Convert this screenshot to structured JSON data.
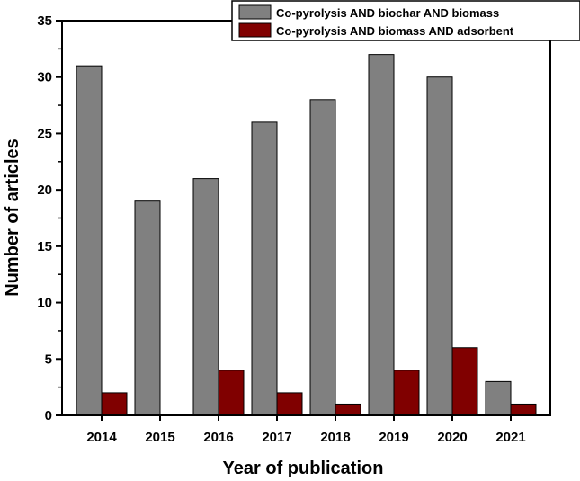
{
  "chart_data": {
    "type": "bar",
    "title": "",
    "xlabel": "Year of publication",
    "ylabel": "Number of articles",
    "categories": [
      "2014",
      "2015",
      "2016",
      "2017",
      "2018",
      "2019",
      "2020",
      "2021"
    ],
    "series": [
      {
        "name": "Co-pyrolysis AND biochar AND biomass",
        "values": [
          31,
          19,
          21,
          26,
          28,
          32,
          30,
          3
        ],
        "color": "#808080"
      },
      {
        "name": "Co-pyrolysis AND biomass AND adsorbent",
        "values": [
          2,
          0,
          4,
          2,
          1,
          4,
          6,
          1
        ],
        "color": "#800000"
      }
    ],
    "ylim": [
      0,
      35
    ],
    "yticks": [
      "0",
      "5",
      "10",
      "15",
      "20",
      "25",
      "30",
      "35"
    ],
    "grid": false,
    "legend_position": "top-right"
  }
}
